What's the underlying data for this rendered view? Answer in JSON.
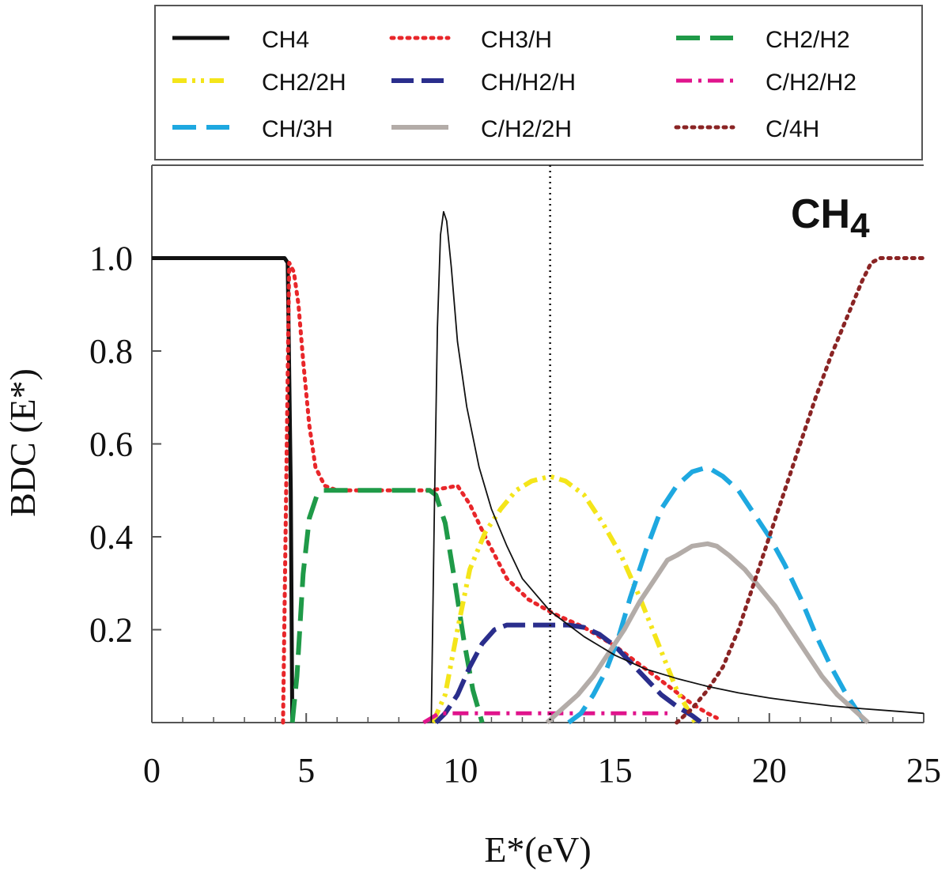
{
  "chart_data": {
    "type": "line",
    "title": "CH4",
    "title_main": "CH",
    "title_sub": "4",
    "xlabel": "E*(eV)",
    "ylabel": "BDC (E*)",
    "xlim": [
      0,
      25
    ],
    "ylim": [
      0,
      1.2
    ],
    "xticks": [
      0,
      5,
      10,
      15,
      20,
      25
    ],
    "xtick_labels": [
      "0",
      "5",
      "10",
      "15",
      "20",
      "25"
    ],
    "yticks": [
      0.2,
      0.4,
      0.6,
      0.8,
      1.0
    ],
    "ytick_labels": [
      "0.2",
      "0.4",
      "0.6",
      "0.8",
      "1.0"
    ],
    "vline_x": 12.9,
    "legend_position": "top",
    "series": [
      {
        "name": "CH4",
        "color": "#111111",
        "dash": "solid",
        "width": 5,
        "x": [
          0,
          4.3,
          4.4,
          4.5,
          4.55
        ],
        "y": [
          1.0,
          1.0,
          0.99,
          0.5,
          0.0
        ]
      },
      {
        "name": "CH3/H",
        "color": "#e8262a",
        "dash": "dot",
        "width": 5,
        "x": [
          4.25,
          4.45,
          4.6,
          4.75,
          4.9,
          5.1,
          5.3,
          5.6,
          6,
          7,
          8,
          9,
          9.5,
          9.9,
          10.3,
          10.8,
          11.5,
          12.2,
          13,
          14,
          15,
          16,
          17,
          17.5,
          18,
          18.3
        ],
        "y": [
          0.0,
          0.99,
          0.97,
          0.9,
          0.78,
          0.64,
          0.55,
          0.51,
          0.5,
          0.5,
          0.5,
          0.5,
          0.505,
          0.51,
          0.47,
          0.4,
          0.31,
          0.265,
          0.235,
          0.205,
          0.165,
          0.115,
          0.065,
          0.04,
          0.02,
          0.01
        ]
      },
      {
        "name": "CH2/H2",
        "color": "#1f9a48",
        "dash": "longdash",
        "width": 6,
        "x": [
          4.55,
          4.7,
          4.9,
          5.1,
          5.35,
          5.55,
          6,
          7,
          8,
          9,
          9.2,
          9.5,
          9.8,
          10.1,
          10.4,
          10.7
        ],
        "y": [
          0.0,
          0.1,
          0.32,
          0.44,
          0.49,
          0.5,
          0.5,
          0.5,
          0.5,
          0.5,
          0.49,
          0.43,
          0.31,
          0.18,
          0.07,
          0.0
        ]
      },
      {
        "name": "CH2/2H",
        "color": "#f4e51a",
        "dash": "dashdotdot",
        "width": 6,
        "x": [
          9.1,
          9.5,
          9.9,
          10.3,
          10.8,
          11.3,
          11.8,
          12.3,
          12.9,
          13.4,
          14,
          14.6,
          15.2,
          15.8,
          16.4,
          17,
          17.6
        ],
        "y": [
          0.0,
          0.06,
          0.2,
          0.33,
          0.41,
          0.46,
          0.5,
          0.52,
          0.53,
          0.52,
          0.49,
          0.43,
          0.36,
          0.27,
          0.17,
          0.07,
          0.0
        ]
      },
      {
        "name": "CH/H2/H",
        "color": "#2a2e8c",
        "dash": "dashlong",
        "width": 6,
        "x": [
          9.2,
          9.5,
          9.9,
          10.3,
          10.7,
          11.1,
          11.5,
          12,
          12.5,
          13,
          13.5,
          14,
          14.5,
          15,
          15.5,
          16,
          16.5,
          17,
          17.5,
          17.8
        ],
        "y": [
          0.0,
          0.02,
          0.06,
          0.12,
          0.17,
          0.2,
          0.21,
          0.21,
          0.21,
          0.21,
          0.21,
          0.205,
          0.19,
          0.165,
          0.13,
          0.095,
          0.06,
          0.035,
          0.015,
          0.0
        ]
      },
      {
        "name": "C/H2/H2",
        "color": "#e0148c",
        "dash": "dashdot",
        "width": 5,
        "x": [
          8.8,
          9.3,
          10,
          11,
          12,
          13,
          14,
          15,
          16,
          16.7
        ],
        "y": [
          0.0,
          0.02,
          0.02,
          0.02,
          0.02,
          0.02,
          0.02,
          0.02,
          0.02,
          0.02
        ]
      },
      {
        "name": "CH/3H",
        "color": "#1ea8e0",
        "dash": "longdash",
        "width": 6,
        "x": [
          13.5,
          13.9,
          14.3,
          14.7,
          15.1,
          15.5,
          16,
          16.5,
          17,
          17.5,
          18,
          18.5,
          19,
          19.5,
          20,
          20.5,
          21,
          21.5,
          22,
          22.5,
          23,
          23.2
        ],
        "y": [
          0.0,
          0.02,
          0.06,
          0.11,
          0.18,
          0.27,
          0.37,
          0.46,
          0.51,
          0.54,
          0.55,
          0.53,
          0.5,
          0.45,
          0.4,
          0.34,
          0.27,
          0.19,
          0.12,
          0.06,
          0.01,
          0.0
        ]
      },
      {
        "name": "C/H2/2H",
        "color": "#b3aca8",
        "dash": "solid",
        "width": 6,
        "x": [
          12.8,
          13.3,
          13.8,
          14.3,
          14.8,
          15.3,
          15.8,
          16.3,
          16.7,
          17,
          17.5,
          18,
          18.3,
          18.7,
          19.2,
          19.7,
          20.2,
          20.7,
          21.2,
          21.7,
          22.2,
          22.7,
          23.2
        ],
        "y": [
          0.0,
          0.03,
          0.06,
          0.1,
          0.15,
          0.2,
          0.26,
          0.31,
          0.35,
          0.36,
          0.38,
          0.385,
          0.38,
          0.36,
          0.33,
          0.29,
          0.25,
          0.2,
          0.15,
          0.1,
          0.06,
          0.03,
          0.0
        ]
      },
      {
        "name": "C/4H",
        "color": "#8a2424",
        "dash": "dot",
        "width": 5,
        "x": [
          17,
          17.5,
          18,
          18.5,
          19,
          19.5,
          20,
          20.5,
          21,
          21.5,
          22,
          22.5,
          23,
          23.3,
          23.6,
          24,
          25
        ],
        "y": [
          0.0,
          0.03,
          0.07,
          0.12,
          0.2,
          0.3,
          0.4,
          0.5,
          0.6,
          0.7,
          0.79,
          0.87,
          0.95,
          0.99,
          1.0,
          1.0,
          1.0
        ]
      },
      {
        "name": "CH4 (thin)",
        "color": "#111111",
        "dash": "solid",
        "width": 1.8,
        "legend": false,
        "x": [
          9.05,
          9.15,
          9.25,
          9.35,
          9.45,
          9.55,
          9.7,
          9.9,
          10.2,
          10.6,
          11,
          11.5,
          12,
          12.9,
          14,
          15,
          16,
          17,
          18,
          19,
          20,
          21,
          22,
          23,
          24,
          25
        ],
        "y": [
          0.0,
          0.45,
          0.85,
          1.05,
          1.1,
          1.08,
          0.98,
          0.82,
          0.68,
          0.55,
          0.46,
          0.38,
          0.31,
          0.24,
          0.185,
          0.145,
          0.115,
          0.095,
          0.078,
          0.064,
          0.053,
          0.044,
          0.036,
          0.03,
          0.025,
          0.02
        ]
      }
    ],
    "legend": [
      {
        "label": "CH4",
        "series": "CH4"
      },
      {
        "label": "CH3/H",
        "series": "CH3/H"
      },
      {
        "label": "CH2/H2",
        "series": "CH2/H2"
      },
      {
        "label": "CH2/2H",
        "series": "CH2/2H"
      },
      {
        "label": "CH/H2/H",
        "series": "CH/H2/H"
      },
      {
        "label": "C/H2/H2",
        "series": "C/H2/H2"
      },
      {
        "label": "CH/3H",
        "series": "CH/3H"
      },
      {
        "label": "C/H2/2H",
        "series": "C/H2/2H"
      },
      {
        "label": "C/4H",
        "series": "C/4H"
      }
    ]
  }
}
